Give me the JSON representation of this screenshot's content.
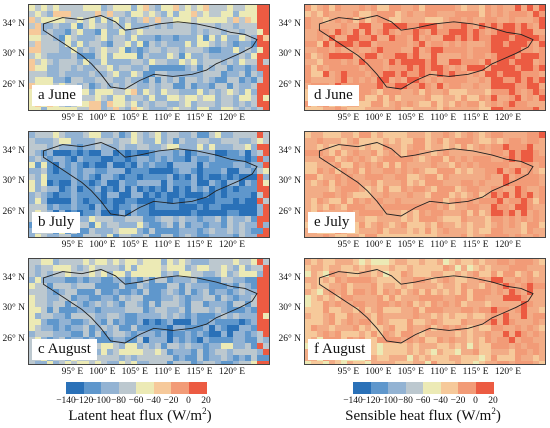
{
  "panels": [
    {
      "label": "a June",
      "variable": "latent",
      "month": "June"
    },
    {
      "label": "b July",
      "variable": "latent",
      "month": "July"
    },
    {
      "label": "c August",
      "variable": "latent",
      "month": "August"
    },
    {
      "label": "d June",
      "variable": "sensible",
      "month": "June"
    },
    {
      "label": "e July",
      "variable": "sensible",
      "month": "July"
    },
    {
      "label": "f August",
      "variable": "sensible",
      "month": "August"
    }
  ],
  "y_ticks": [
    "34° N",
    "30° N",
    "26° N"
  ],
  "x_ticks": [
    "95° E",
    "100° E",
    "105° E",
    "110° E",
    "115° E",
    "120° E"
  ],
  "colorbars": [
    {
      "caption": "Latent heat flux (W/m",
      "caption_sup": "2",
      "caption_end": ")"
    },
    {
      "caption": "Sensible heat flux (W/m",
      "caption_sup": "2",
      "caption_end": ")"
    }
  ],
  "colorbar_ticks": [
    "−140",
    "−120",
    "−100",
    "−80",
    "−60",
    "−40",
    "−20",
    "0",
    "20"
  ],
  "colorbar_colors": [
    "#2a71b8",
    "#5f97cc",
    "#93b3d3",
    "#bcc8cf",
    "#eceab5",
    "#f6c99a",
    "#f29b77",
    "#ec5b42"
  ]
}
